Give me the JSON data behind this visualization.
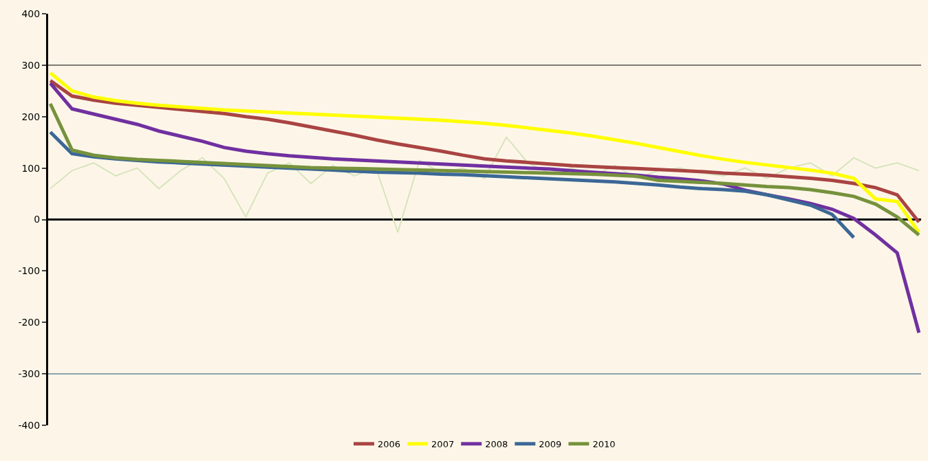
{
  "chart_data": {
    "type": "line",
    "categories": [
      null,
      null,
      null,
      null,
      null,
      null,
      null,
      null,
      null,
      null,
      null,
      null,
      null,
      null,
      null,
      null,
      null,
      null,
      null,
      null,
      null,
      null,
      null,
      null,
      null,
      null,
      null,
      null,
      null,
      null,
      null,
      null,
      null,
      null,
      null,
      null,
      null,
      null,
      null,
      null,
      null
    ],
    "series": [
      {
        "color": "#d7e4bd",
        "values": [
          60,
          95,
          110,
          85,
          100,
          60,
          95,
          120,
          80,
          5,
          90,
          110,
          70,
          105,
          85,
          100,
          -25,
          115,
          90,
          100,
          80,
          160,
          110,
          90,
          100,
          85,
          105,
          80,
          95,
          100,
          90,
          85,
          100,
          80,
          100,
          110,
          85,
          120,
          100,
          110,
          95
        ]
      },
      {
        "name": "2006",
        "color": "#a94442",
        "values": [
          270,
          240,
          232,
          226,
          222,
          218,
          214,
          210,
          206,
          200,
          195,
          188,
          180,
          172,
          164,
          155,
          147,
          140,
          133,
          125,
          118,
          114,
          111,
          108,
          105,
          103,
          101,
          99,
          97,
          95,
          93,
          90,
          88,
          86,
          83,
          80,
          76,
          70,
          62,
          48,
          -5
        ]
      },
      {
        "name": "2007",
        "color": "#ffff00",
        "values": [
          285,
          250,
          238,
          231,
          226,
          222,
          219,
          216,
          213,
          211,
          209,
          207,
          205,
          203,
          201,
          199,
          197,
          195,
          193,
          190,
          187,
          183,
          178,
          173,
          168,
          162,
          155,
          148,
          140,
          132,
          124,
          117,
          111,
          106,
          101,
          96,
          90,
          80,
          40,
          35,
          -25
        ]
      },
      {
        "name": "2008",
        "color": "#7030a0",
        "values": [
          265,
          215,
          205,
          195,
          185,
          172,
          162,
          152,
          140,
          133,
          128,
          124,
          121,
          118,
          116,
          114,
          112,
          110,
          108,
          106,
          104,
          102,
          100,
          98,
          95,
          92,
          89,
          86,
          82,
          79,
          75,
          69,
          57,
          48,
          40,
          31,
          20,
          2,
          -30,
          -65,
          -220
        ]
      },
      {
        "name": "2009",
        "color": "#3b6796",
        "values": [
          170,
          128,
          122,
          118,
          115,
          112,
          110,
          108,
          106,
          104,
          102,
          100,
          98,
          96,
          94,
          92,
          91,
          90,
          88,
          87,
          85,
          83,
          81,
          79,
          77,
          75,
          73,
          70,
          67,
          63,
          60,
          58,
          55,
          48,
          38,
          28,
          10,
          -35,
          null,
          null,
          null
        ]
      },
      {
        "name": "2010",
        "color": "#76923c",
        "values": [
          225,
          135,
          125,
          120,
          117,
          115,
          113,
          111,
          109,
          107,
          105,
          103,
          101,
          100,
          99,
          98,
          97,
          96,
          95,
          94,
          93,
          92,
          91,
          90,
          89,
          88,
          86,
          84,
          76,
          74,
          72,
          70,
          67,
          64,
          62,
          58,
          52,
          45,
          30,
          5,
          -30
        ]
      }
    ],
    "ylim": [
      -400,
      400
    ],
    "yticks": [
      -400,
      -300,
      -200,
      -100,
      0,
      100,
      200,
      300,
      400
    ],
    "grid": false,
    "legend": "bottom",
    "line_style": "solid",
    "marker": "none",
    "ref_lines": [
      {
        "axis": "y",
        "value": 300,
        "color": "#000000"
      },
      {
        "axis": "y",
        "value": 0,
        "color": "#000000"
      },
      {
        "axis": "y",
        "value": -300,
        "color": "#1f4e79"
      }
    ]
  }
}
